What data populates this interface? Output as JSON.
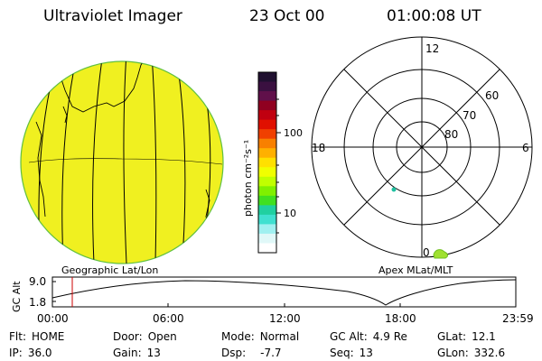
{
  "header": {
    "title": "Ultraviolet Imager",
    "date": "23 Oct 00",
    "time": "01:00:08 UT"
  },
  "colorbar": {
    "unit_label": "photon cm⁻²s⁻¹",
    "ticks": [
      "100",
      "10"
    ],
    "colors": [
      "#201030",
      "#3a1040",
      "#60104a",
      "#900020",
      "#c00010",
      "#e01000",
      "#f04000",
      "#f88000",
      "#ffb000",
      "#ffe000",
      "#f0ff00",
      "#c0ff00",
      "#80f000",
      "#40e020",
      "#20d0a0",
      "#40e0d0",
      "#a0f0f0",
      "#e0f8f8",
      "#ffffff"
    ]
  },
  "polar": {
    "hour_labels": [
      "12",
      "18",
      "6",
      "0"
    ],
    "lat_labels": [
      "60",
      "70",
      "80"
    ]
  },
  "globe": {
    "label": "Geographic Lat/Lon",
    "fill_color": "#f0f020"
  },
  "polar_caption": "Apex MLat/MLT",
  "altitude_plot": {
    "ylabel": "GC Alt",
    "y_ticks": [
      "9.0",
      "1.8"
    ],
    "x_ticks": [
      "00:00",
      "06:00",
      "12:00",
      "18:00",
      "23:59"
    ],
    "marker_color": "#cc0000"
  },
  "info": {
    "flt_label": "Flt:",
    "flt_value": "HOME",
    "ip_label": "IP:",
    "ip_value": "36.0",
    "door_label": "Door:",
    "door_value": "Open",
    "gain_label": "Gain:",
    "gain_value": "13",
    "mode_label": "Mode:",
    "mode_value": "Normal",
    "dsp_label": "Dsp:",
    "dsp_value": "-7.7",
    "gcalt_label": "GC Alt:",
    "gcalt_value": "4.9 Re",
    "seq_label": "Seq:",
    "seq_value": "13",
    "glat_label": "GLat:",
    "glat_value": "12.1",
    "glon_label": "GLon:",
    "glon_value": "332.6"
  }
}
